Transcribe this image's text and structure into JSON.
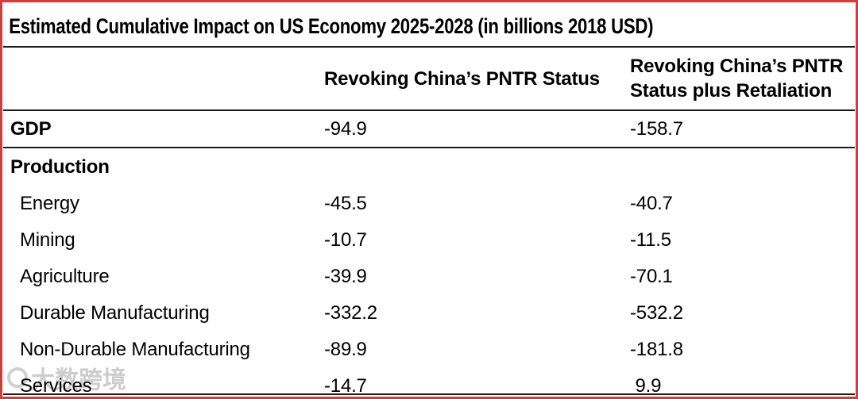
{
  "title": "Estimated Cumulative Impact on US Economy 2025-2028 (in billions 2018 USD)",
  "table": {
    "columns": [
      "Revoking China’s PNTR Status",
      "Revoking China’s PNTR Status plus Retaliation"
    ],
    "rows": [
      {
        "label": "GDP",
        "values": [
          "-94.9",
          "-158.7"
        ]
      },
      {
        "label": "Production",
        "values": [
          "",
          ""
        ]
      },
      {
        "label": "Energy",
        "values": [
          "-45.5",
          "-40.7"
        ]
      },
      {
        "label": "Mining",
        "values": [
          "-10.7",
          "-11.5"
        ]
      },
      {
        "label": "Agriculture",
        "values": [
          "-39.9",
          "-70.1"
        ]
      },
      {
        "label": "Durable Manufacturing",
        "values": [
          "-332.2",
          "-532.2"
        ]
      },
      {
        "label": "Non-Durable Manufacturing",
        "values": [
          "-89.9",
          "-181.8"
        ]
      },
      {
        "label": "Services",
        "values": [
          "-14.7",
          " 9.9"
        ]
      }
    ]
  },
  "watermark": {
    "text": "大数跨境"
  },
  "colors": {
    "frame_border": "#d43b3b",
    "rule": "#1b1b1b",
    "text": "#000000",
    "watermark": "#a6a6a6",
    "background": "#ffffff"
  },
  "chart_data": {
    "type": "table",
    "title": "Estimated Cumulative Impact on US Economy 2025-2028 (in billions 2018 USD)",
    "unit": "billions 2018 USD",
    "columns": [
      "",
      "Revoking China’s PNTR Status",
      "Revoking China’s PNTR Status plus Retaliation"
    ],
    "rows": [
      [
        "GDP",
        -94.9,
        -158.7
      ],
      [
        "Production",
        null,
        null
      ],
      [
        "Energy",
        -45.5,
        -40.7
      ],
      [
        "Mining",
        -10.7,
        -11.5
      ],
      [
        "Agriculture",
        -39.9,
        -70.1
      ],
      [
        "Durable Manufacturing",
        -332.2,
        -532.2
      ],
      [
        "Non-Durable Manufacturing",
        -89.9,
        -181.8
      ],
      [
        "Services",
        -14.7,
        9.9
      ]
    ]
  }
}
